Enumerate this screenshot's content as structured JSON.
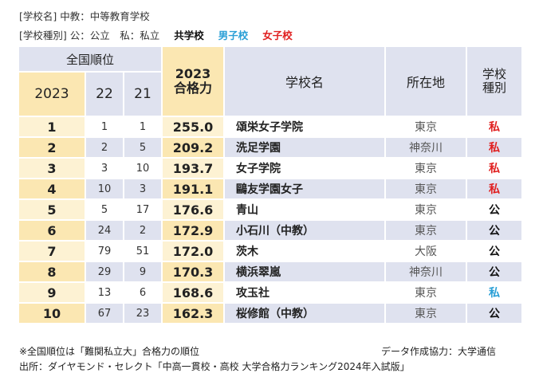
{
  "legend": {
    "line1": "[学校名] 中教：中等教育学校",
    "line2_prefix": "[学校種別] 公：公立　私：私立",
    "coed": "共学校",
    "boys": "男子校",
    "girls": "女子校"
  },
  "colors": {
    "boys": "#2a9fd6",
    "girls": "#e02020",
    "coed": "#111111",
    "highlight": "#fbe7b2",
    "header": "#dfe2ef"
  },
  "header": {
    "national_rank": "全国順位",
    "year_2023": "2023",
    "year_22": "22",
    "year_21": "21",
    "gokaku_line1": "2023",
    "gokaku_line2": "合格力",
    "school_name": "学校名",
    "location": "所在地",
    "kind_line1": "学校",
    "kind_line2": "種別"
  },
  "rows": [
    {
      "rank": "1",
      "r22": "1",
      "r21": "1",
      "score": "255.0",
      "name": "頌栄女子学院",
      "location": "東京",
      "kind": "私",
      "gender": "girls"
    },
    {
      "rank": "2",
      "r22": "2",
      "r21": "5",
      "score": "209.2",
      "name": "洗足学園",
      "location": "神奈川",
      "kind": "私",
      "gender": "girls"
    },
    {
      "rank": "3",
      "r22": "3",
      "r21": "10",
      "score": "193.7",
      "name": "女子学院",
      "location": "東京",
      "kind": "私",
      "gender": "girls"
    },
    {
      "rank": "4",
      "r22": "10",
      "r21": "3",
      "score": "191.1",
      "name": "鷗友学園女子",
      "location": "東京",
      "kind": "私",
      "gender": "girls"
    },
    {
      "rank": "5",
      "r22": "5",
      "r21": "17",
      "score": "176.6",
      "name": "青山",
      "location": "東京",
      "kind": "公",
      "gender": "coed"
    },
    {
      "rank": "6",
      "r22": "24",
      "r21": "2",
      "score": "172.9",
      "name": "小石川（中教）",
      "location": "東京",
      "kind": "公",
      "gender": "coed"
    },
    {
      "rank": "7",
      "r22": "79",
      "r21": "51",
      "score": "172.0",
      "name": "茨木",
      "location": "大阪",
      "kind": "公",
      "gender": "coed"
    },
    {
      "rank": "8",
      "r22": "29",
      "r21": "9",
      "score": "170.3",
      "name": "横浜翠嵐",
      "location": "神奈川",
      "kind": "公",
      "gender": "coed"
    },
    {
      "rank": "9",
      "r22": "13",
      "r21": "6",
      "score": "168.6",
      "name": "攻玉社",
      "location": "東京",
      "kind": "私",
      "gender": "boys"
    },
    {
      "rank": "10",
      "r22": "67",
      "r21": "23",
      "score": "162.3",
      "name": "桜修館（中教）",
      "location": "東京",
      "kind": "公",
      "gender": "coed"
    }
  ],
  "footer": {
    "note": "※全国順位は「難関私立大」合格力の順位",
    "data_credit": "データ作成協力：大学通信",
    "source": "出所：ダイヤモンド・セレクト「中高一貫校・高校 大学合格力ランキング2024年入試版」"
  }
}
